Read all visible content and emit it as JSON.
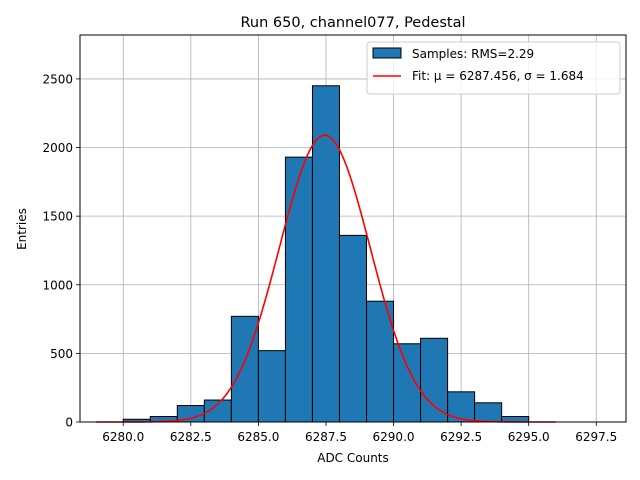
{
  "chart_data": {
    "type": "bar",
    "title": "Run 650, channel077, Pedestal",
    "xlabel": "ADC Counts",
    "ylabel": "Entries",
    "xlim": [
      6278.4,
      6298.6
    ],
    "ylim": [
      0,
      2820
    ],
    "grid": true,
    "legend_position": "top-right",
    "x_ticks": [
      {
        "value": 6280.0,
        "label": "6280.0"
      },
      {
        "value": 6282.5,
        "label": "6282.5"
      },
      {
        "value": 6285.0,
        "label": "6285.0"
      },
      {
        "value": 6287.5,
        "label": "6287.5"
      },
      {
        "value": 6290.0,
        "label": "6290.0"
      },
      {
        "value": 6292.5,
        "label": "6292.5"
      },
      {
        "value": 6295.0,
        "label": "6295.0"
      },
      {
        "value": 6297.5,
        "label": "6297.5"
      }
    ],
    "y_ticks": [
      {
        "value": 0,
        "label": "0"
      },
      {
        "value": 500,
        "label": "500"
      },
      {
        "value": 1000,
        "label": "1000"
      },
      {
        "value": 1500,
        "label": "1500"
      },
      {
        "value": 2000,
        "label": "2000"
      },
      {
        "value": 2500,
        "label": "2500"
      }
    ],
    "histogram": {
      "name": "Samples: RMS=2.29",
      "color": "#1f77b4",
      "edge_color": "#000000",
      "bins": [
        {
          "x0": 6279.0,
          "x1": 6280.0,
          "count": 0
        },
        {
          "x0": 6280.0,
          "x1": 6281.0,
          "count": 20
        },
        {
          "x0": 6281.0,
          "x1": 6282.0,
          "count": 40
        },
        {
          "x0": 6282.0,
          "x1": 6283.0,
          "count": 120
        },
        {
          "x0": 6283.0,
          "x1": 6284.0,
          "count": 160
        },
        {
          "x0": 6284.0,
          "x1": 6285.0,
          "count": 770
        },
        {
          "x0": 6285.0,
          "x1": 6286.0,
          "count": 520
        },
        {
          "x0": 6286.0,
          "x1": 6287.0,
          "count": 1930
        },
        {
          "x0": 6287.0,
          "x1": 6288.0,
          "count": 2450
        },
        {
          "x0": 6288.0,
          "x1": 6289.0,
          "count": 1360
        },
        {
          "x0": 6289.0,
          "x1": 6290.0,
          "count": 880
        },
        {
          "x0": 6290.0,
          "x1": 6291.0,
          "count": 570
        },
        {
          "x0": 6291.0,
          "x1": 6292.0,
          "count": 610
        },
        {
          "x0": 6292.0,
          "x1": 6293.0,
          "count": 220
        },
        {
          "x0": 6293.0,
          "x1": 6294.0,
          "count": 140
        },
        {
          "x0": 6294.0,
          "x1": 6295.0,
          "count": 40
        },
        {
          "x0": 6295.0,
          "x1": 6296.0,
          "count": 0
        }
      ]
    },
    "fit": {
      "name": "Fit: μ = 6287.456, σ = 1.684",
      "color": "#ff0000",
      "type": "gaussian",
      "mu": 6287.456,
      "sigma": 1.684,
      "amplitude": 2090,
      "x_range": [
        6279.0,
        6296.0
      ]
    }
  }
}
